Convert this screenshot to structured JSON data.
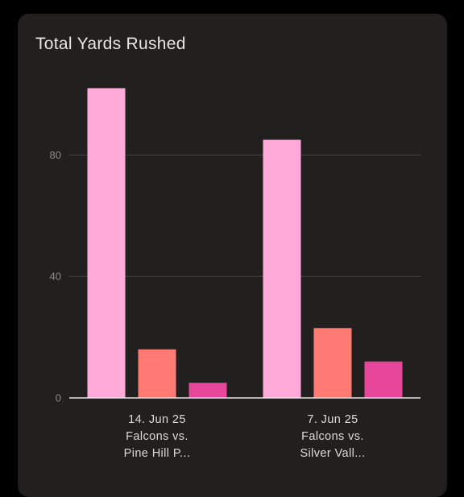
{
  "card": {
    "title": "Total Yards Rushed"
  },
  "chart_data": {
    "type": "bar",
    "title": "Total Yards Rushed",
    "xlabel": "",
    "ylabel": "",
    "ylim": [
      0,
      110
    ],
    "yticks": [
      0,
      40,
      80
    ],
    "grid": true,
    "legend": "none",
    "categories": [
      [
        "14. Jun 25",
        "Falcons vs.",
        "Pine Hill P..."
      ],
      [
        "7. Jun 25",
        "Falcons vs.",
        "Silver Vall..."
      ]
    ],
    "series": [
      {
        "color": "#ffaad8",
        "values": [
          102,
          85
        ]
      },
      {
        "color": "#ff7b73",
        "values": [
          16,
          23
        ]
      },
      {
        "color": "#e6479a",
        "values": [
          5,
          12
        ]
      }
    ],
    "colors": {
      "background": "#000000",
      "card": "#221f1f",
      "grid": "#4a4646",
      "axis": "#e8e5e5"
    }
  }
}
